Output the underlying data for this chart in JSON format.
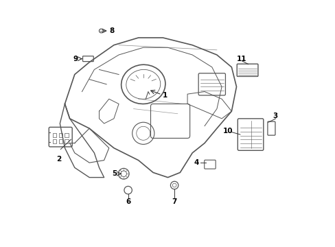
{
  "title": "",
  "background_color": "#ffffff",
  "line_color": "#555555",
  "text_color": "#000000",
  "fig_width": 4.89,
  "fig_height": 3.6,
  "dpi": 100
}
